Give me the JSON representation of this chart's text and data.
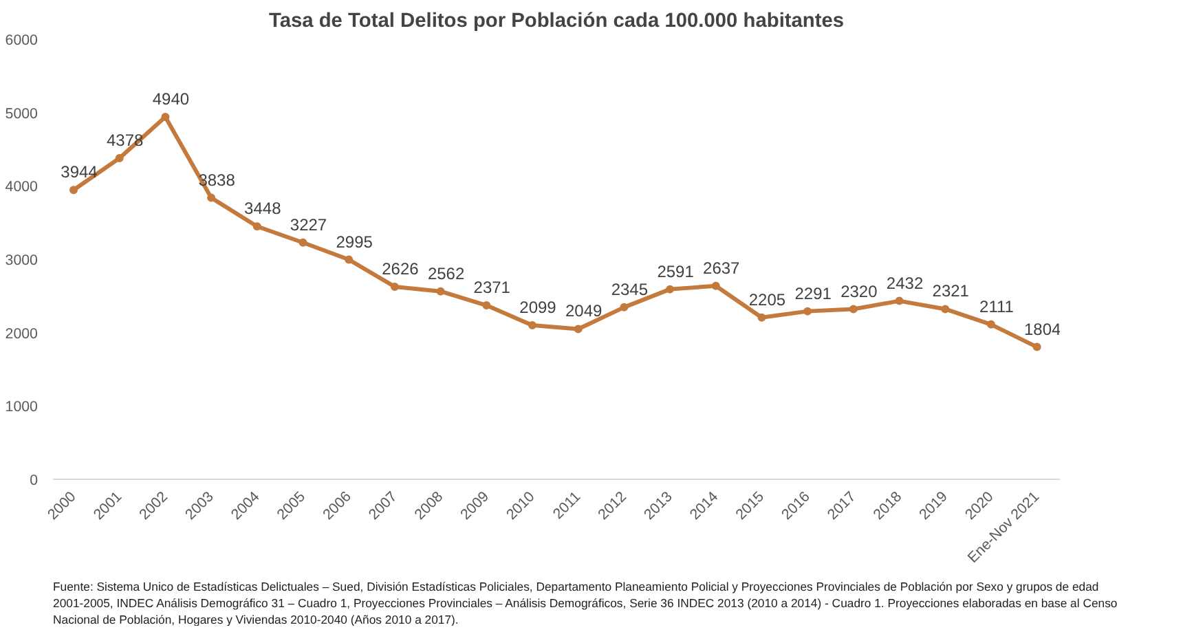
{
  "chart_data": {
    "type": "line",
    "title": "Tasa de Total Delitos por Población cada 100.000 habitantes",
    "categories": [
      "2000",
      "2001",
      "2002",
      "2003",
      "2004",
      "2005",
      "2006",
      "2007",
      "2008",
      "2009",
      "2010",
      "2011",
      "2012",
      "2013",
      "2014",
      "2015",
      "2016",
      "2017",
      "2018",
      "2019",
      "2020",
      "Ene-Nov 2021"
    ],
    "series": [
      {
        "color": "#c47a3c",
        "values": [
          3944,
          4378,
          4940,
          3838,
          3448,
          3227,
          2995,
          2626,
          2562,
          2371,
          2099,
          2049,
          2345,
          2591,
          2637,
          2205,
          2291,
          2320,
          2432,
          2321,
          2111,
          1804
        ]
      }
    ],
    "ylim": [
      0,
      6000
    ],
    "yticks": [
      0,
      1000,
      2000,
      3000,
      4000,
      5000,
      6000
    ],
    "grid": false,
    "marker": "circle",
    "line_style": "solid",
    "data_labels": true,
    "annotations": [
      "Fuente: Sistema Unico de Estadísticas Delictuales – Sued, División Estadísticas Policiales, Departamento Planeamiento Policial y Proyecciones Provinciales de Población por Sexo y grupos de edad 2001-2005, INDEC Análisis Demográfico 31 – Cuadro 1, Proyecciones Provinciales – Análisis Demográficos, Serie 36 INDEC 2013 (2010 a 2014) - Cuadro 1. Proyecciones elaboradas en base al  Censo Nacional de Población, Hogares y Viviendas 2010-2040 (Años 2010 a 2017)."
    ]
  }
}
